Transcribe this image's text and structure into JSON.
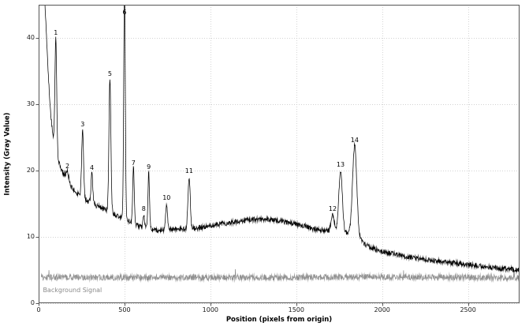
{
  "chart_data": {
    "type": "line",
    "title": "",
    "xlabel": "Position (pixels from origin)",
    "ylabel": "Intensity (Gray Value)",
    "xlim": [
      0,
      2800
    ],
    "ylim": [
      0,
      45
    ],
    "xticks": [
      0,
      500,
      1000,
      1500,
      2000,
      2500
    ],
    "yticks": [
      0,
      10,
      20,
      30,
      40
    ],
    "grid": true,
    "legend": "none",
    "colors": {
      "signal": "#000000",
      "background": "#909090",
      "grid": "#c4c4c4",
      "spine": "#555555",
      "tick_text": "#1a1a1a",
      "annotation_text": "#8a8a8a"
    },
    "series": [
      {
        "name": "signal",
        "color": "#000000",
        "noise": 0.38,
        "spikes": false,
        "baseline": [
          [
            35,
            46
          ],
          [
            50,
            38
          ],
          [
            65,
            30
          ],
          [
            80,
            26
          ],
          [
            95,
            23.5
          ],
          [
            115,
            21.5
          ],
          [
            140,
            19.8
          ],
          [
            170,
            18.3
          ],
          [
            200,
            17.2
          ],
          [
            240,
            16.2
          ],
          [
            280,
            15.5
          ],
          [
            330,
            14.8
          ],
          [
            380,
            14.2
          ],
          [
            430,
            13.6
          ],
          [
            480,
            12.9
          ],
          [
            520,
            12.4
          ],
          [
            560,
            11.9
          ],
          [
            600,
            11.5
          ],
          [
            650,
            11.2
          ],
          [
            700,
            11.0
          ],
          [
            750,
            11.1
          ],
          [
            800,
            11.2
          ],
          [
            850,
            11.2
          ],
          [
            900,
            11.3
          ],
          [
            950,
            11.4
          ],
          [
            1000,
            11.7
          ],
          [
            1050,
            11.9
          ],
          [
            1100,
            12.1
          ],
          [
            1150,
            12.3
          ],
          [
            1200,
            12.5
          ],
          [
            1250,
            12.6
          ],
          [
            1300,
            12.7
          ],
          [
            1350,
            12.6
          ],
          [
            1400,
            12.4
          ],
          [
            1450,
            12.2
          ],
          [
            1500,
            11.9
          ],
          [
            1550,
            11.6
          ],
          [
            1600,
            11.2
          ],
          [
            1650,
            11.0
          ],
          [
            1700,
            10.8
          ],
          [
            1750,
            10.7
          ],
          [
            1800,
            10.6
          ],
          [
            1840,
            10.4
          ],
          [
            1870,
            9.8
          ],
          [
            1900,
            8.9
          ],
          [
            1940,
            8.3
          ],
          [
            2000,
            7.8
          ],
          [
            2060,
            7.5
          ],
          [
            2130,
            7.1
          ],
          [
            2200,
            6.8
          ],
          [
            2300,
            6.4
          ],
          [
            2400,
            6.1
          ],
          [
            2500,
            5.8
          ],
          [
            2600,
            5.5
          ],
          [
            2700,
            5.2
          ],
          [
            2800,
            5.0
          ]
        ],
        "peaks": [
          {
            "label": "1",
            "x": 100,
            "y": 40.0,
            "sigma": 5
          },
          {
            "label": "2",
            "x": 168,
            "y": 19.9,
            "sigma": 7
          },
          {
            "label": "3",
            "x": 256,
            "y": 26.2,
            "sigma": 5.5
          },
          {
            "label": "4",
            "x": 310,
            "y": 19.6,
            "sigma": 5
          },
          {
            "label": "5",
            "x": 415,
            "y": 33.8,
            "sigma": 5.5
          },
          {
            "label": "6",
            "x": 500,
            "y": 48.0,
            "sigma": 4.5
          },
          {
            "label": "7",
            "x": 552,
            "y": 20.4,
            "sigma": 4.5
          },
          {
            "label": "8",
            "x": 612,
            "y": 13.5,
            "sigma": 4
          },
          {
            "label": "9",
            "x": 641,
            "y": 19.7,
            "sigma": 4.5
          },
          {
            "label": "10",
            "x": 745,
            "y": 15.1,
            "sigma": 5
          },
          {
            "label": "11",
            "x": 876,
            "y": 19.1,
            "sigma": 6.5
          },
          {
            "label": "12",
            "x": 1712,
            "y": 13.4,
            "sigma": 9
          },
          {
            "label": "13",
            "x": 1758,
            "y": 20.1,
            "sigma": 10
          },
          {
            "label": "14",
            "x": 1840,
            "y": 23.8,
            "sigma": 12
          }
        ]
      },
      {
        "name": "background",
        "color": "#909090",
        "noise": 0.45,
        "spikes": true,
        "baseline": [
          [
            15,
            3.9
          ],
          [
            1000,
            3.85
          ],
          [
            2000,
            3.95
          ],
          [
            2800,
            3.85
          ]
        ],
        "peaks": []
      }
    ],
    "annotations": [
      {
        "text": "Background Signal",
        "x": 25,
        "y": 1.3,
        "color": "#8a8a8a"
      }
    ]
  }
}
